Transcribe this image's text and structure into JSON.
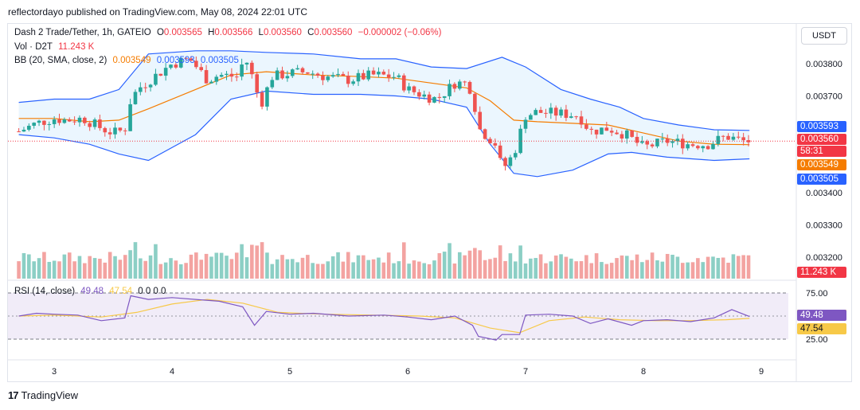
{
  "header": "reflectordayo published on TradingView.com, May 08, 2024 22:01 UTC",
  "currency_button": "USDT",
  "legend": {
    "symbol": "Dash 2 Trade/Tether, 1h, GATEIO",
    "o_label": "O",
    "o": "0.003565",
    "h_label": "H",
    "h": "0.003566",
    "l_label": "L",
    "l": "0.003560",
    "c_label": "C",
    "c": "0.003560",
    "change": "−0.000002 (−0.06%)",
    "vol_label": "Vol · D2T",
    "vol": "11.243 K",
    "bb_label": "BB (20, SMA, close, 2)",
    "bb_basis": "0.003549",
    "bb_upper": "0.003593",
    "bb_lower": "0.003505",
    "rsi_label": "RSI (14, close)",
    "rsi": "49.48",
    "rsi_ma": "47.54",
    "rsi_zeros": "0  0  0  0"
  },
  "price_tags": {
    "upper": "0.003593",
    "last": "0.003560",
    "countdown": "58:31",
    "basis": "0.003549",
    "lower": "0.003505",
    "volume": "11.243 K",
    "rsi": "49.48",
    "rsi_ma": "47.54"
  },
  "colors": {
    "up": "#26a69a",
    "down": "#ef5350",
    "vol_up": "#8ccfc5",
    "vol_down": "#f3a3a1",
    "bb_upper": "#2962ff",
    "bb_basis": "#f57c00",
    "bb_fill": "#e3f2fd",
    "rsi": "#7e57c2",
    "rsi_ma": "#f7c948",
    "rsi_band": "#ede7f6"
  },
  "footer": {
    "brand": "TradingView",
    "logo": "17"
  },
  "chart_data": [
    {
      "type": "candlestick",
      "title": "Dash 2 Trade/Tether, 1h, GATEIO",
      "x_ticks": [
        "3",
        "4",
        "5",
        "6",
        "7",
        "8",
        "9"
      ],
      "y_ticks": [
        "0.003800",
        "0.003700",
        "0.003400",
        "0.003300",
        "0.003200"
      ],
      "ylim": [
        0.00315,
        0.00385
      ],
      "close_path": [
        [
          2.7,
          0.00359
        ],
        [
          2.85,
          0.003615
        ],
        [
          3.0,
          0.00363
        ],
        [
          3.1,
          0.003625
        ],
        [
          3.25,
          0.00363
        ],
        [
          3.4,
          0.0036
        ],
        [
          3.5,
          0.003585
        ],
        [
          3.6,
          0.003595
        ],
        [
          3.65,
          0.00369
        ],
        [
          3.72,
          0.003725
        ],
        [
          3.85,
          0.00376
        ],
        [
          4.0,
          0.0038
        ],
        [
          4.15,
          0.003815
        ],
        [
          4.3,
          0.00375
        ],
        [
          4.4,
          0.003765
        ],
        [
          4.55,
          0.00376
        ],
        [
          4.62,
          0.00382
        ],
        [
          4.7,
          0.00374
        ],
        [
          4.75,
          0.00367
        ],
        [
          4.85,
          0.00376
        ],
        [
          5.0,
          0.00377
        ],
        [
          5.15,
          0.003775
        ],
        [
          5.3,
          0.00376
        ],
        [
          5.5,
          0.00375
        ],
        [
          5.7,
          0.003765
        ],
        [
          5.9,
          0.00376
        ],
        [
          6.0,
          0.00372
        ],
        [
          6.15,
          0.0037
        ],
        [
          6.25,
          0.00369
        ],
        [
          6.4,
          0.00374
        ],
        [
          6.5,
          0.00374
        ],
        [
          6.55,
          0.00371
        ],
        [
          6.6,
          0.0036
        ],
        [
          6.75,
          0.00355
        ],
        [
          6.8,
          0.00347
        ],
        [
          6.9,
          0.00352
        ],
        [
          7.0,
          0.00364
        ],
        [
          7.1,
          0.00365
        ],
        [
          7.3,
          0.003645
        ],
        [
          7.45,
          0.00364
        ],
        [
          7.55,
          0.00359
        ],
        [
          7.7,
          0.0036
        ],
        [
          7.85,
          0.00358
        ],
        [
          8.0,
          0.00354
        ],
        [
          8.2,
          0.00356
        ],
        [
          8.4,
          0.00355
        ],
        [
          8.55,
          0.00355
        ],
        [
          8.7,
          0.003575
        ],
        [
          8.85,
          0.00356
        ]
      ],
      "bb_upper": [
        [
          2.7,
          0.00368
        ],
        [
          3.0,
          0.00369
        ],
        [
          3.3,
          0.00369
        ],
        [
          3.55,
          0.00372
        ],
        [
          3.8,
          0.00383
        ],
        [
          4.2,
          0.00384
        ],
        [
          4.5,
          0.00384
        ],
        [
          4.8,
          0.003835
        ],
        [
          5.2,
          0.00383
        ],
        [
          5.6,
          0.003815
        ],
        [
          5.9,
          0.003815
        ],
        [
          6.2,
          0.00379
        ],
        [
          6.5,
          0.003785
        ],
        [
          6.8,
          0.00382
        ],
        [
          7.0,
          0.00379
        ],
        [
          7.3,
          0.00372
        ],
        [
          7.55,
          0.00369
        ],
        [
          7.8,
          0.003665
        ],
        [
          8.0,
          0.00363
        ],
        [
          8.3,
          0.00361
        ],
        [
          8.6,
          0.003595
        ],
        [
          8.9,
          0.003593
        ]
      ],
      "bb_basis": [
        [
          2.7,
          0.00363
        ],
        [
          3.0,
          0.00363
        ],
        [
          3.3,
          0.00362
        ],
        [
          3.55,
          0.003625
        ],
        [
          3.8,
          0.00366
        ],
        [
          4.2,
          0.00372
        ],
        [
          4.5,
          0.003765
        ],
        [
          4.8,
          0.003775
        ],
        [
          5.2,
          0.003765
        ],
        [
          5.6,
          0.00376
        ],
        [
          5.9,
          0.003755
        ],
        [
          6.2,
          0.00374
        ],
        [
          6.5,
          0.003725
        ],
        [
          6.7,
          0.003685
        ],
        [
          6.9,
          0.003625
        ],
        [
          7.1,
          0.00362
        ],
        [
          7.4,
          0.003615
        ],
        [
          7.7,
          0.00361
        ],
        [
          8.0,
          0.003585
        ],
        [
          8.3,
          0.00356
        ],
        [
          8.6,
          0.00355
        ],
        [
          8.9,
          0.003549
        ]
      ],
      "bb_lower": [
        [
          2.7,
          0.00358
        ],
        [
          3.0,
          0.00357
        ],
        [
          3.3,
          0.00355
        ],
        [
          3.55,
          0.00352
        ],
        [
          3.8,
          0.0035
        ],
        [
          4.2,
          0.00358
        ],
        [
          4.5,
          0.00369
        ],
        [
          4.8,
          0.003715
        ],
        [
          5.2,
          0.003705
        ],
        [
          5.6,
          0.003705
        ],
        [
          5.9,
          0.0037
        ],
        [
          6.2,
          0.00369
        ],
        [
          6.5,
          0.003665
        ],
        [
          6.7,
          0.00355
        ],
        [
          6.9,
          0.00346
        ],
        [
          7.1,
          0.00345
        ],
        [
          7.4,
          0.00347
        ],
        [
          7.7,
          0.00352
        ],
        [
          7.9,
          0.003525
        ],
        [
          8.2,
          0.00351
        ],
        [
          8.6,
          0.0035
        ],
        [
          8.9,
          0.003505
        ]
      ],
      "last_price": 0.00356
    },
    {
      "type": "bar",
      "title": "Vol · D2T",
      "x_range": [
        2.7,
        8.9
      ],
      "note": "hourly volume bars, alternating up/down colours",
      "last_value": "11.243 K"
    },
    {
      "type": "line",
      "title": "RSI (14, close)",
      "y_ticks": [
        "75.00",
        "25.00"
      ],
      "ylim": [
        10,
        90
      ],
      "band": [
        30,
        70
      ],
      "mid": 50,
      "series": [
        {
          "name": "RSI",
          "points": [
            [
              2.7,
              50
            ],
            [
              2.85,
              53
            ],
            [
              3.0,
              52
            ],
            [
              3.2,
              51
            ],
            [
              3.4,
              45
            ],
            [
              3.6,
              48
            ],
            [
              3.65,
              72
            ],
            [
              3.8,
              68
            ],
            [
              4.0,
              70
            ],
            [
              4.2,
              68
            ],
            [
              4.4,
              66
            ],
            [
              4.6,
              60
            ],
            [
              4.7,
              40
            ],
            [
              4.8,
              55
            ],
            [
              5.0,
              52
            ],
            [
              5.2,
              53
            ],
            [
              5.5,
              50
            ],
            [
              5.8,
              51
            ],
            [
              6.0,
              49
            ],
            [
              6.2,
              46
            ],
            [
              6.4,
              50
            ],
            [
              6.55,
              40
            ],
            [
              6.6,
              28
            ],
            [
              6.75,
              24
            ],
            [
              6.8,
              30
            ],
            [
              6.95,
              30
            ],
            [
              7.0,
              51
            ],
            [
              7.2,
              52
            ],
            [
              7.4,
              50
            ],
            [
              7.55,
              42
            ],
            [
              7.7,
              47
            ],
            [
              7.9,
              40
            ],
            [
              8.0,
              45
            ],
            [
              8.2,
              46
            ],
            [
              8.4,
              44
            ],
            [
              8.6,
              48
            ],
            [
              8.75,
              57
            ],
            [
              8.9,
              49.48
            ]
          ]
        },
        {
          "name": "RSI-based MA",
          "points": [
            [
              2.7,
              50
            ],
            [
              3.0,
              51
            ],
            [
              3.4,
              49
            ],
            [
              3.7,
              54
            ],
            [
              4.0,
              63
            ],
            [
              4.3,
              68
            ],
            [
              4.6,
              64
            ],
            [
              4.9,
              54
            ],
            [
              5.3,
              52
            ],
            [
              5.7,
              51
            ],
            [
              6.1,
              50
            ],
            [
              6.4,
              48
            ],
            [
              6.7,
              37
            ],
            [
              6.95,
              32
            ],
            [
              7.2,
              45
            ],
            [
              7.5,
              49
            ],
            [
              7.8,
              46
            ],
            [
              8.1,
              45
            ],
            [
              8.4,
              45
            ],
            [
              8.7,
              46
            ],
            [
              8.9,
              47.54
            ]
          ]
        }
      ]
    }
  ]
}
